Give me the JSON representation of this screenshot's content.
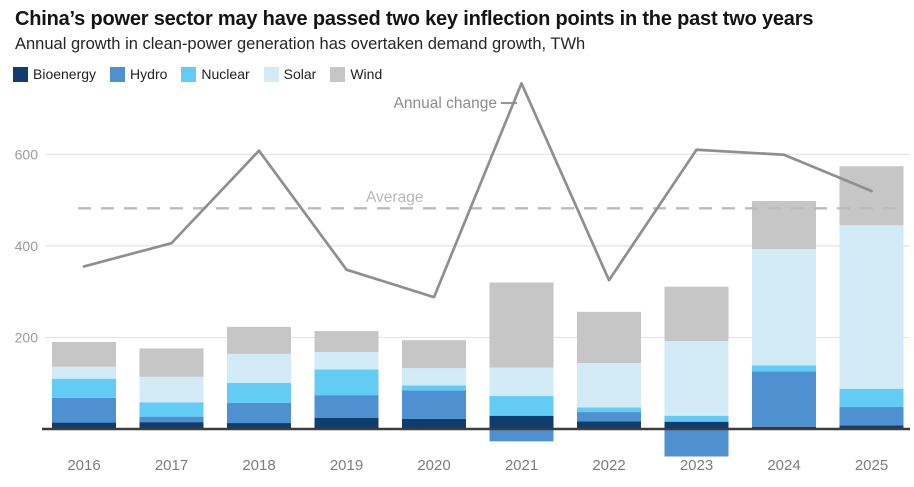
{
  "header": {
    "title": "China’s power sector may have passed two key inflection points in the past two years",
    "subtitle": "Annual growth in clean-power generation has overtaken demand growth, TWh"
  },
  "legend": {
    "items": [
      {
        "key": "bioenergy",
        "label": "Bioenergy",
        "color": "#0e3d6e"
      },
      {
        "key": "hydro",
        "label": "Hydro",
        "color": "#4f90d0"
      },
      {
        "key": "nuclear",
        "label": "Nuclear",
        "color": "#63ccf5"
      },
      {
        "key": "solar",
        "label": "Solar",
        "color": "#d2ebf7"
      },
      {
        "key": "wind",
        "label": "Wind",
        "color": "#c7c6c6"
      }
    ]
  },
  "chart_data": {
    "type": "bar",
    "subtype": "stacked-bars-with-line-overlay",
    "title": "China’s power sector may have passed two key inflection points in the past two years",
    "subtitle": "Annual growth in clean-power generation has overtaken demand growth, TWh",
    "unit": "TWh",
    "categories": [
      "2016",
      "2017",
      "2018",
      "2019",
      "2020",
      "2021",
      "2022",
      "2023",
      "2024",
      "2025"
    ],
    "series": [
      {
        "name": "Bioenergy",
        "color": "#0e3d6e",
        "values": [
          14,
          15,
          13,
          24,
          22,
          29,
          17,
          16,
          5,
          8
        ]
      },
      {
        "name": "Hydro",
        "color": "#4f90d0",
        "values": [
          54,
          12,
          44,
          50,
          62,
          -27,
          20,
          -60,
          121,
          40
        ]
      },
      {
        "name": "Nuclear",
        "color": "#63ccf5",
        "values": [
          42,
          31,
          44,
          56,
          11,
          43,
          10,
          13,
          13,
          40
        ]
      },
      {
        "name": "Solar",
        "color": "#d2ebf7",
        "values": [
          26,
          56,
          63,
          38,
          38,
          62,
          97,
          163,
          254,
          357
        ]
      },
      {
        "name": "Wind",
        "color": "#c7c6c6",
        "values": [
          54,
          62,
          59,
          46,
          61,
          186,
          112,
          119,
          105,
          129
        ]
      }
    ],
    "line": {
      "name": "Annual change",
      "color": "#8f8f8f",
      "values": [
        355,
        406,
        608,
        348,
        288,
        755,
        325,
        610,
        599,
        520
      ]
    },
    "average_line": {
      "label": "Average",
      "value": 482,
      "style": "dashed",
      "color": "#bcbcbc"
    },
    "yticks": [
      200,
      400,
      600
    ],
    "ylim": [
      -75,
      770
    ],
    "xlabel": "",
    "ylabel": "TWh",
    "grid": "horizontal",
    "legend_position": "top-left",
    "legend_entries": [
      "Bioenergy",
      "Hydro",
      "Nuclear",
      "Solar",
      "Wind"
    ]
  }
}
